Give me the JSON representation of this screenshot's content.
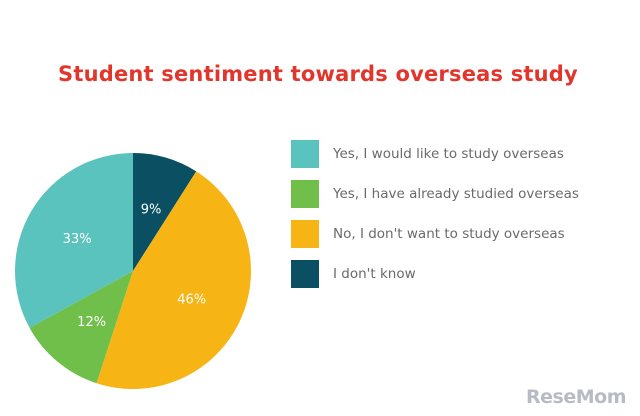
{
  "chart_data": {
    "type": "pie",
    "title": "Student sentiment towards overseas study",
    "slices": [
      {
        "name": "Yes, I would like to study overseas",
        "value": 33,
        "label": "33%",
        "color": "#5bc3bd"
      },
      {
        "name": "Yes, I have already studied overseas",
        "value": 12,
        "label": "12%",
        "color": "#6fbf4a"
      },
      {
        "name": "No, I don't want to study overseas",
        "value": 46,
        "label": "46%",
        "color": "#f7b515"
      },
      {
        "name": "I don't know",
        "value": 9,
        "label": "9%",
        "color": "#0a5062"
      }
    ],
    "legend_position": "right"
  },
  "watermark": "ReseMom"
}
